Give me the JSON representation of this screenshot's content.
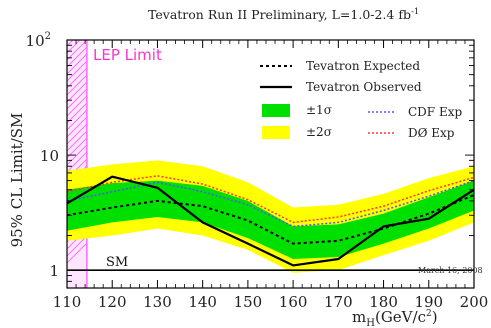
{
  "chart_data": {
    "type": "line",
    "title": "Tevatron Run II Preliminary, L=1.0-2.4 fb",
    "title_superscript": "-1",
    "ylabel": "95% CL Limit/SM",
    "xlabel": "m",
    "xlabel_subscript": "H",
    "xlabel_unit": "(GeV/c",
    "xlabel_unit_sup": "2",
    "xlabel_unit_close": ")",
    "y_scale": "log",
    "xlim": [
      110,
      200
    ],
    "ylim": [
      0.7,
      100
    ],
    "x_ticks": [
      110,
      120,
      130,
      140,
      150,
      160,
      170,
      180,
      190,
      200
    ],
    "y_tick_labels": [
      {
        "value": 1,
        "label": "1"
      },
      {
        "value": 10,
        "label": "10"
      },
      {
        "value": 100,
        "label": "10",
        "sup": "2"
      }
    ],
    "x": [
      110,
      120,
      130,
      140,
      150,
      160,
      170,
      180,
      190,
      200
    ],
    "series": [
      {
        "name": "Tevatron Expected",
        "style": "dashed",
        "color": "#000000",
        "values": [
          3.0,
          3.5,
          4.0,
          3.6,
          2.7,
          1.7,
          1.8,
          2.3,
          3.1,
          4.5
        ]
      },
      {
        "name": "Tevatron Observed",
        "style": "solid",
        "color": "#000000",
        "values": [
          3.8,
          6.5,
          5.2,
          2.6,
          1.7,
          1.1,
          1.25,
          2.4,
          2.8,
          5.0
        ]
      },
      {
        "name": "CDF Exp",
        "style": "dotted",
        "color": "#5555ff",
        "values": [
          4.0,
          4.8,
          5.8,
          4.8,
          3.7,
          2.4,
          2.6,
          3.3,
          4.4,
          6.0
        ]
      },
      {
        "name": "DØ Exp",
        "style": "dotted",
        "color": "#ff3333",
        "values": [
          4.8,
          5.8,
          6.6,
          5.6,
          4.1,
          2.6,
          2.9,
          3.6,
          4.9,
          6.4
        ]
      }
    ],
    "bands": [
      {
        "name": "±2σ",
        "color": "#ffff00",
        "lower": [
          1.8,
          2.0,
          2.3,
          2.0,
          1.5,
          0.95,
          1.0,
          1.35,
          1.8,
          2.6
        ],
        "upper": [
          7.3,
          8.3,
          9.0,
          8.0,
          5.8,
          3.5,
          3.7,
          4.6,
          6.3,
          8.0
        ]
      },
      {
        "name": "±1σ",
        "color": "#00e000",
        "lower": [
          2.2,
          2.6,
          2.9,
          2.6,
          1.9,
          1.25,
          1.3,
          1.7,
          2.3,
          3.3
        ],
        "upper": [
          5.0,
          5.7,
          6.0,
          5.4,
          4.0,
          2.4,
          2.5,
          3.1,
          4.3,
          6.0
        ]
      }
    ],
    "reference_line": {
      "label": "SM",
      "value": 1
    },
    "excluded_region": {
      "label": "LEP Limit",
      "x_max": 114.4,
      "color": "#ff66ff"
    },
    "date_label": "March 16, 2008",
    "legend_position": "top-right",
    "grid": false
  }
}
